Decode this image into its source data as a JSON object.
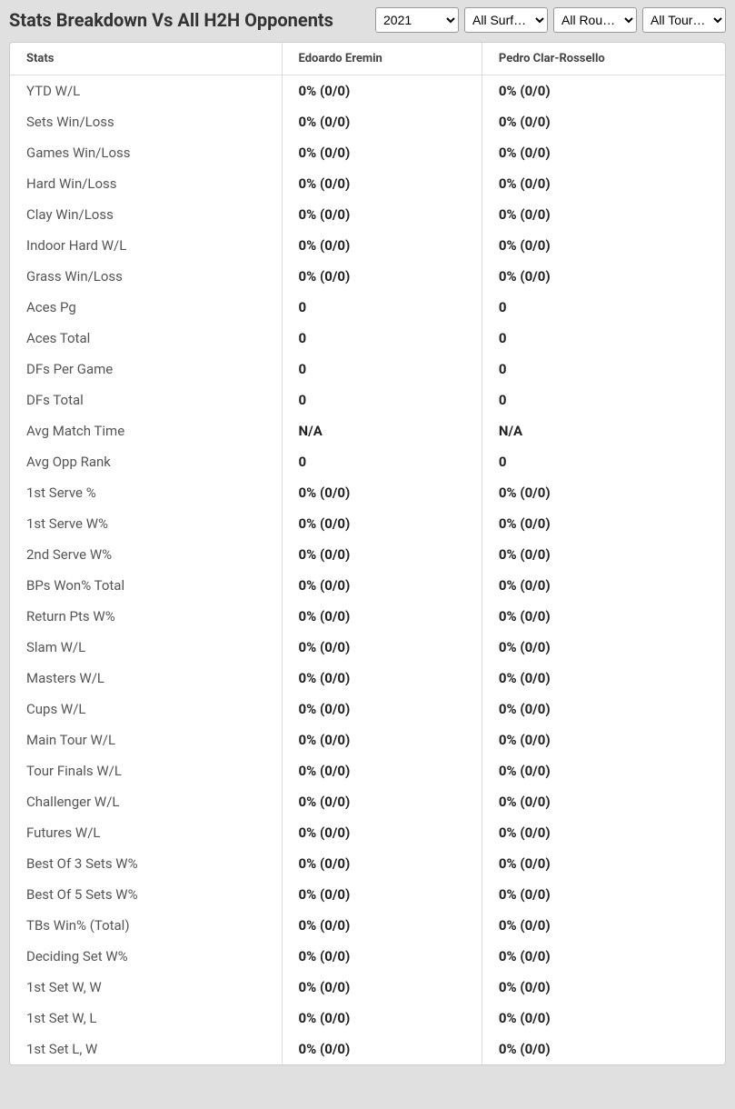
{
  "header": {
    "title": "Stats Breakdown Vs All H2H Opponents"
  },
  "filters": {
    "year": {
      "selected": "2021",
      "options": [
        "2021"
      ]
    },
    "surface": {
      "selected": "All Surf…",
      "options": [
        "All Surf…"
      ]
    },
    "round": {
      "selected": "All Rou…",
      "options": [
        "All Rou…"
      ]
    },
    "tournament": {
      "selected": "All Tour…",
      "options": [
        "All Tour…"
      ]
    }
  },
  "table": {
    "columns": [
      "Stats",
      "Edoardo Eremin",
      "Pedro Clar-Rossello"
    ],
    "rows": [
      [
        "YTD W/L",
        "0% (0/0)",
        "0% (0/0)"
      ],
      [
        "Sets Win/Loss",
        "0% (0/0)",
        "0% (0/0)"
      ],
      [
        "Games Win/Loss",
        "0% (0/0)",
        "0% (0/0)"
      ],
      [
        "Hard Win/Loss",
        "0% (0/0)",
        "0% (0/0)"
      ],
      [
        "Clay Win/Loss",
        "0% (0/0)",
        "0% (0/0)"
      ],
      [
        "Indoor Hard W/L",
        "0% (0/0)",
        "0% (0/0)"
      ],
      [
        "Grass Win/Loss",
        "0% (0/0)",
        "0% (0/0)"
      ],
      [
        "Aces Pg",
        "0",
        "0"
      ],
      [
        "Aces Total",
        "0",
        "0"
      ],
      [
        "DFs Per Game",
        "0",
        "0"
      ],
      [
        "DFs Total",
        "0",
        "0"
      ],
      [
        "Avg Match Time",
        "N/A",
        "N/A"
      ],
      [
        "Avg Opp Rank",
        "0",
        "0"
      ],
      [
        "1st Serve %",
        "0% (0/0)",
        "0% (0/0)"
      ],
      [
        "1st Serve W%",
        "0% (0/0)",
        "0% (0/0)"
      ],
      [
        "2nd Serve W%",
        "0% (0/0)",
        "0% (0/0)"
      ],
      [
        "BPs Won% Total",
        "0% (0/0)",
        "0% (0/0)"
      ],
      [
        "Return Pts W%",
        "0% (0/0)",
        "0% (0/0)"
      ],
      [
        "Slam W/L",
        "0% (0/0)",
        "0% (0/0)"
      ],
      [
        "Masters W/L",
        "0% (0/0)",
        "0% (0/0)"
      ],
      [
        "Cups W/L",
        "0% (0/0)",
        "0% (0/0)"
      ],
      [
        "Main Tour W/L",
        "0% (0/0)",
        "0% (0/0)"
      ],
      [
        "Tour Finals W/L",
        "0% (0/0)",
        "0% (0/0)"
      ],
      [
        "Challenger W/L",
        "0% (0/0)",
        "0% (0/0)"
      ],
      [
        "Futures W/L",
        "0% (0/0)",
        "0% (0/0)"
      ],
      [
        "Best Of 3 Sets W%",
        "0% (0/0)",
        "0% (0/0)"
      ],
      [
        "Best Of 5 Sets W%",
        "0% (0/0)",
        "0% (0/0)"
      ],
      [
        "TBs Win% (Total)",
        "0% (0/0)",
        "0% (0/0)"
      ],
      [
        "Deciding Set W%",
        "0% (0/0)",
        "0% (0/0)"
      ],
      [
        "1st Set W, W",
        "0% (0/0)",
        "0% (0/0)"
      ],
      [
        "1st Set W, L",
        "0% (0/0)",
        "0% (0/0)"
      ],
      [
        "1st Set L, W",
        "0% (0/0)",
        "0% (0/0)"
      ]
    ]
  },
  "style": {
    "background_color": "#e0e0e0",
    "table_background": "#ffffff",
    "border_color": "#dddddd",
    "header_text_color": "#444444",
    "stat_label_color": "#555555",
    "value_color": "#222222",
    "title_color": "#333333",
    "title_fontsize": 20,
    "header_fontsize": 13,
    "cell_fontsize": 15
  }
}
